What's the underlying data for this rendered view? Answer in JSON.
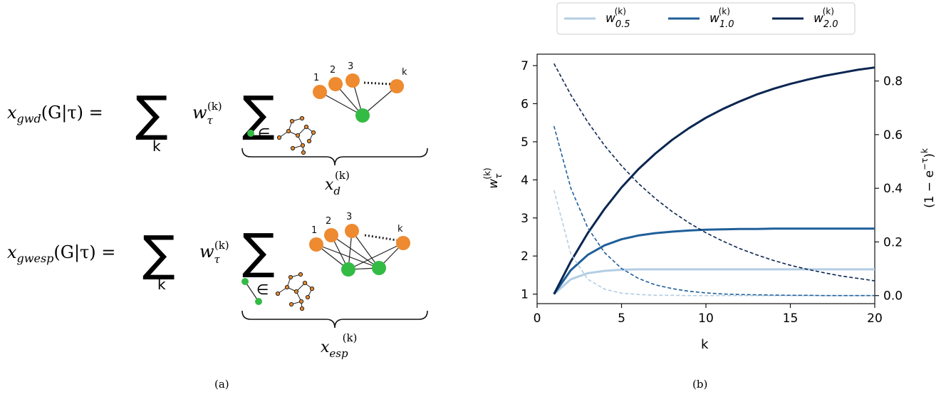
{
  "panel_a": {
    "caption": "(a)",
    "gwd": {
      "lhs_var": "x",
      "lhs_sub": "gwd",
      "lhs_args": "(G|τ) =",
      "sum_index": "k",
      "weight_var": "w",
      "weight_sub": "τ",
      "weight_sup": "(k)",
      "node_labels": [
        "1",
        "2",
        "3",
        "k"
      ],
      "belongs": "∈",
      "brace_var": "x",
      "brace_sub": "d",
      "brace_sup": "(k)"
    },
    "gwesp": {
      "lhs_var": "x",
      "lhs_sub": "gwesp",
      "lhs_args": "(G|τ) =",
      "sum_index": "k",
      "weight_var": "w",
      "weight_sub": "τ",
      "weight_sup": "(k)",
      "node_labels": [
        "1",
        "2",
        "3",
        "k"
      ],
      "belongs": "∈",
      "brace_var": "x",
      "brace_sub": "esp",
      "brace_sup": "(k)"
    },
    "colors": {
      "orange_node": "#ee8a2f",
      "green_node": "#33bb44",
      "small_node": "#e8892a"
    }
  },
  "panel_b": {
    "caption": "(b)",
    "chart_data": {
      "type": "line",
      "xlabel": "k",
      "ylabel_left": "w_τ^(k)",
      "ylabel_right": "(1 − e^{−τ})^k",
      "xlim": [
        0,
        20
      ],
      "ylim_left": [
        0.75,
        7.3
      ],
      "ylim_right": [
        -0.03,
        0.9
      ],
      "x_ticks": [
        0,
        5,
        10,
        15,
        20
      ],
      "y_ticks_left": [
        1,
        2,
        3,
        4,
        5,
        6,
        7
      ],
      "y_ticks_right": [
        "0.0",
        "0.2",
        "0.4",
        "0.6",
        "0.8"
      ],
      "legend_position": "top",
      "legend": [
        {
          "var": "w",
          "sub": "0.5",
          "sup": "(k)",
          "color": "#b3cde3"
        },
        {
          "var": "w",
          "sub": "1.0",
          "sup": "(k)",
          "color": "#1f5f99"
        },
        {
          "var": "w",
          "sub": "2.0",
          "sup": "(k)",
          "color": "#0b2651"
        }
      ],
      "series": [
        {
          "name": "w_0.5^(k)",
          "tau": 0.5,
          "color": "#b3cde3",
          "style": "solid",
          "axis": "left",
          "x": [
            1,
            2,
            3,
            4,
            5,
            6,
            7,
            8,
            9,
            10,
            11,
            12,
            13,
            14,
            15,
            16,
            17,
            18,
            19,
            20
          ],
          "values": [
            1.0,
            1.39,
            1.55,
            1.61,
            1.64,
            1.65,
            1.65,
            1.65,
            1.65,
            1.65,
            1.65,
            1.65,
            1.65,
            1.65,
            1.65,
            1.65,
            1.65,
            1.65,
            1.65,
            1.65
          ]
        },
        {
          "name": "w_1.0^(k)",
          "tau": 1.0,
          "color": "#1f5f99",
          "style": "solid",
          "axis": "left",
          "x": [
            1,
            2,
            3,
            4,
            5,
            6,
            7,
            8,
            9,
            10,
            11,
            12,
            13,
            14,
            15,
            16,
            17,
            18,
            19,
            20
          ],
          "values": [
            1.0,
            1.63,
            2.03,
            2.28,
            2.44,
            2.54,
            2.6,
            2.64,
            2.67,
            2.69,
            2.7,
            2.71,
            2.71,
            2.72,
            2.72,
            2.72,
            2.72,
            2.72,
            2.72,
            2.72
          ]
        },
        {
          "name": "w_2.0^(k)",
          "tau": 2.0,
          "color": "#0b2651",
          "style": "solid",
          "axis": "left",
          "x": [
            1,
            2,
            3,
            4,
            5,
            6,
            7,
            8,
            9,
            10,
            11,
            12,
            13,
            14,
            15,
            16,
            17,
            18,
            19,
            20
          ],
          "values": [
            1.0,
            1.86,
            2.6,
            3.24,
            3.8,
            4.28,
            4.69,
            5.05,
            5.36,
            5.63,
            5.86,
            6.06,
            6.24,
            6.39,
            6.52,
            6.63,
            6.73,
            6.81,
            6.89,
            6.95
          ]
        },
        {
          "name": "(1-e^-0.5)^k",
          "tau": 0.5,
          "color": "#b3cde3",
          "style": "dashed",
          "axis": "right",
          "x": [
            1,
            2,
            3,
            4,
            5,
            6,
            7,
            8,
            9,
            10,
            11,
            12,
            13,
            14,
            15,
            16,
            17,
            18,
            19,
            20
          ],
          "values": [
            0.393,
            0.155,
            0.061,
            0.024,
            0.009,
            0.004,
            0.001,
            0.001,
            0.0,
            0.0,
            0.0,
            0.0,
            0.0,
            0.0,
            0.0,
            0.0,
            0.0,
            0.0,
            0.0,
            0.0
          ]
        },
        {
          "name": "(1-e^-1.0)^k",
          "tau": 1.0,
          "color": "#1f5f99",
          "style": "dashed",
          "axis": "right",
          "x": [
            1,
            2,
            3,
            4,
            5,
            6,
            7,
            8,
            9,
            10,
            11,
            12,
            13,
            14,
            15,
            16,
            17,
            18,
            19,
            20
          ],
          "values": [
            0.632,
            0.4,
            0.253,
            0.16,
            0.101,
            0.064,
            0.04,
            0.026,
            0.016,
            0.01,
            0.006,
            0.004,
            0.003,
            0.002,
            0.001,
            0.001,
            0.0,
            0.0,
            0.0,
            0.0
          ]
        },
        {
          "name": "(1-e^-2.0)^k",
          "tau": 2.0,
          "color": "#0b2651",
          "style": "dashed",
          "axis": "right",
          "x": [
            1,
            2,
            3,
            4,
            5,
            6,
            7,
            8,
            9,
            10,
            11,
            12,
            13,
            14,
            15,
            16,
            17,
            18,
            19,
            20
          ],
          "values": [
            0.865,
            0.748,
            0.647,
            0.559,
            0.484,
            0.418,
            0.362,
            0.313,
            0.271,
            0.234,
            0.203,
            0.175,
            0.152,
            0.131,
            0.113,
            0.098,
            0.085,
            0.073,
            0.064,
            0.055
          ]
        }
      ]
    }
  }
}
